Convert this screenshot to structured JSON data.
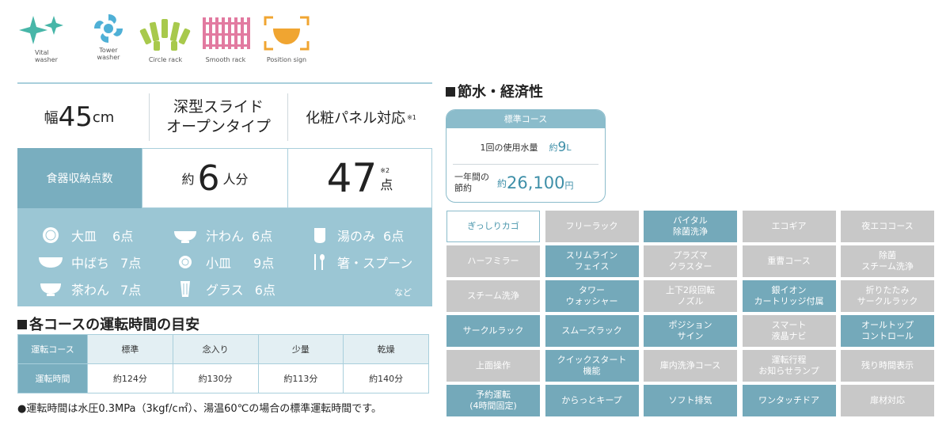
{
  "icons": [
    {
      "name": "vital-washer-icon",
      "caption_line1": "Vital",
      "caption_line2": "washer",
      "color": "#47b6a8"
    },
    {
      "name": "tower-washer-icon",
      "caption_line1": "Tower",
      "caption_line2": "washer",
      "color": "#4fb0d6"
    },
    {
      "name": "circle-rack-icon",
      "caption_line1": "Circle rack",
      "caption_line2": "",
      "color": "#a8c94c"
    },
    {
      "name": "smooth-rack-icon",
      "caption_line1": "Smooth rack",
      "caption_line2": "",
      "color": "#e27aa0"
    },
    {
      "name": "position-sign-icon",
      "caption_line1": "Position sign",
      "caption_line2": "",
      "color": "#f0a531"
    }
  ],
  "spec": {
    "width_label": "幅",
    "width_value": "45",
    "width_unit": "cm",
    "door_line1": "深型スライド",
    "door_line2": "オープンタイプ",
    "panel_text": "化粧パネル対応",
    "panel_note": "※1"
  },
  "capacity": {
    "label": "食器収納点数",
    "approx": "約",
    "persons": "6",
    "persons_unit": "人分",
    "pieces": "47",
    "pieces_note": "※2",
    "pieces_unit": "点"
  },
  "dishes": [
    {
      "name": "大皿",
      "count": "6点"
    },
    {
      "name": "汁わん",
      "count": "6点"
    },
    {
      "name": "湯のみ",
      "count": "6点"
    },
    {
      "name": "中ばち",
      "count": "7点"
    },
    {
      "name": "小皿",
      "count": "9点"
    },
    {
      "name": "箸・スプーン",
      "count": ""
    },
    {
      "name": "茶わん",
      "count": "7点"
    },
    {
      "name": "グラス",
      "count": "6点"
    }
  ],
  "dishes_etc": "など",
  "timing": {
    "title": "各コースの運転時間の目安",
    "row_header_course": "運転コース",
    "row_header_time": "運転時間",
    "courses": [
      "標準",
      "念入り",
      "少量",
      "乾燥"
    ],
    "times": [
      "約124分",
      "約130分",
      "約113分",
      "約140分"
    ],
    "footnote": "●運転時間は水圧0.3MPa（3kgf/c㎡）、湯温60℃の場合の標準運転時間です。"
  },
  "water": {
    "title": "節水・経済性",
    "course_label": "標準コース",
    "usage_label": "1回の使用水量",
    "usage_approx": "約",
    "usage_value": "9",
    "usage_unit": "L",
    "saving_label_1": "一年間の",
    "saving_label_2": "節約",
    "saving_approx": "約",
    "saving_value": "26,100",
    "saving_unit": "円"
  },
  "features": [
    {
      "label": "ぎっしりカゴ",
      "state": "hi"
    },
    {
      "label": "フリーラック",
      "state": "off"
    },
    {
      "label": "バイタル\n除菌洗浄",
      "state": "on"
    },
    {
      "label": "エコギア",
      "state": "off"
    },
    {
      "label": "夜エココース",
      "state": "off"
    },
    {
      "label": "ハーフミラー",
      "state": "off"
    },
    {
      "label": "スリムライン\nフェイス",
      "state": "on"
    },
    {
      "label": "プラズマ\nクラスター",
      "state": "off"
    },
    {
      "label": "重曹コース",
      "state": "off"
    },
    {
      "label": "除菌\nスチーム洗浄",
      "state": "off"
    },
    {
      "label": "スチーム洗浄",
      "state": "off"
    },
    {
      "label": "タワー\nウォッシャー",
      "state": "on"
    },
    {
      "label": "上下2段回転\nノズル",
      "state": "off"
    },
    {
      "label": "銀イオン\nカートリッジ付属",
      "state": "on"
    },
    {
      "label": "折りたたみ\nサークルラック",
      "state": "off"
    },
    {
      "label": "サークルラック",
      "state": "on"
    },
    {
      "label": "スムーズラック",
      "state": "on"
    },
    {
      "label": "ポジション\nサイン",
      "state": "on"
    },
    {
      "label": "スマート\n液晶ナビ",
      "state": "off"
    },
    {
      "label": "オールトップ\nコントロール",
      "state": "on"
    },
    {
      "label": "上面操作",
      "state": "off"
    },
    {
      "label": "クイックスタート\n機能",
      "state": "on"
    },
    {
      "label": "庫内洗浄コース",
      "state": "off"
    },
    {
      "label": "運転行程\nお知らせランプ",
      "state": "off"
    },
    {
      "label": "残り時間表示",
      "state": "off"
    },
    {
      "label": "予約運転\n(4時間固定)",
      "state": "on"
    },
    {
      "label": "からっとキープ",
      "state": "on"
    },
    {
      "label": "ソフト排気",
      "state": "on"
    },
    {
      "label": "ワンタッチドア",
      "state": "on"
    },
    {
      "label": "扉材対応",
      "state": "off"
    }
  ],
  "colors": {
    "accent": "#79aebf",
    "feature_on": "#74a9ba",
    "feature_off": "#c8c8c8",
    "dish_panel": "#9bc6d4",
    "highlight_text": "#3e8fa8"
  }
}
